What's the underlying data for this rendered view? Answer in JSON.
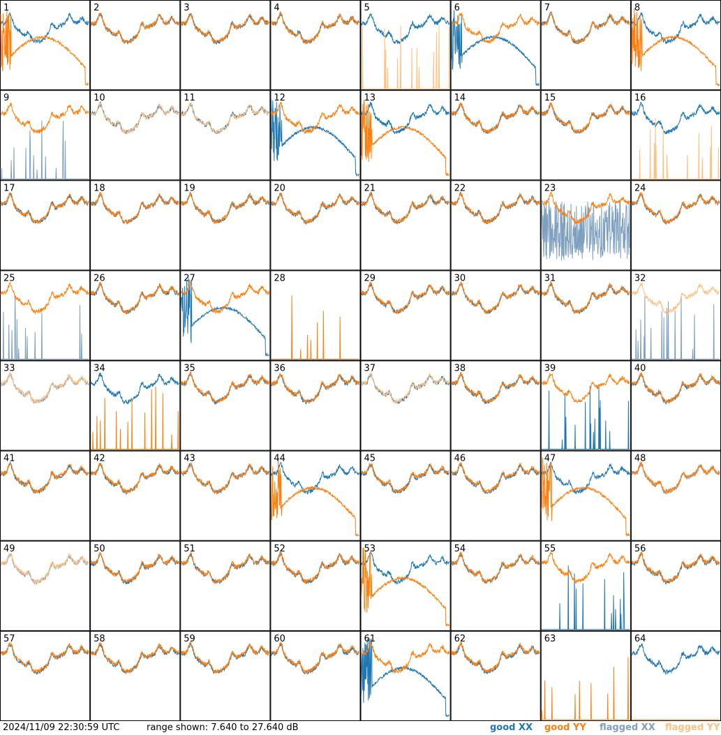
{
  "footer": {
    "timestamp": "2024/11/09 22:30:59 UTC",
    "range_text": "range shown: 7.640 to 27.640 dB"
  },
  "legend": {
    "good_xx": "good XX",
    "good_yy": "good YY",
    "flagged_xx": "flagged XX",
    "flagged_yy": "flagged YY"
  },
  "colors": {
    "good_xx": "#1f77b4",
    "good_yy": "#ff7f0e",
    "flagged_xx": "#7f9fbf",
    "flagged_yy": "#ffc080"
  },
  "chart_data": {
    "type": "line",
    "title": "",
    "xlabel": "",
    "ylabel": "",
    "ylim": [
      7.64,
      27.64
    ],
    "grid": "8x8 small multiples",
    "series_names": [
      "good XX",
      "good YY",
      "flagged XX",
      "flagged YY"
    ],
    "panels": [
      {
        "id": 1,
        "xx": "good",
        "yy": "good",
        "xx_shape": "normal",
        "yy_shape": "weird"
      },
      {
        "id": 2,
        "xx": "good",
        "yy": "good",
        "xx_shape": "normal",
        "yy_shape": "normal"
      },
      {
        "id": 3,
        "xx": "good",
        "yy": "good",
        "xx_shape": "normal",
        "yy_shape": "normal"
      },
      {
        "id": 4,
        "xx": "good",
        "yy": "good",
        "xx_shape": "normal",
        "yy_shape": "normal"
      },
      {
        "id": 5,
        "xx": "good",
        "yy": "flagged",
        "xx_shape": "normal",
        "yy_shape": "spikes"
      },
      {
        "id": 6,
        "xx": "good",
        "yy": "good",
        "xx_shape": "weird",
        "yy_shape": "normal"
      },
      {
        "id": 7,
        "xx": "good",
        "yy": "good",
        "xx_shape": "normal",
        "yy_shape": "normal"
      },
      {
        "id": 8,
        "xx": "good",
        "yy": "good",
        "xx_shape": "normal",
        "yy_shape": "weird"
      },
      {
        "id": 9,
        "xx": "flagged",
        "yy": "good",
        "xx_shape": "spikes",
        "yy_shape": "normal"
      },
      {
        "id": 10,
        "xx": "good",
        "yy": "flagged",
        "xx_shape": "normal",
        "yy_shape": "normal"
      },
      {
        "id": 11,
        "xx": "good",
        "yy": "flagged",
        "xx_shape": "normal",
        "yy_shape": "normal"
      },
      {
        "id": 12,
        "xx": "good",
        "yy": "good",
        "xx_shape": "weird",
        "yy_shape": "normal"
      },
      {
        "id": 13,
        "xx": "good",
        "yy": "good",
        "xx_shape": "normal",
        "yy_shape": "weird"
      },
      {
        "id": 14,
        "xx": "good",
        "yy": "good",
        "xx_shape": "normal",
        "yy_shape": "normal"
      },
      {
        "id": 15,
        "xx": "good",
        "yy": "good",
        "xx_shape": "normal",
        "yy_shape": "normal"
      },
      {
        "id": 16,
        "xx": "good",
        "yy": "flagged",
        "xx_shape": "normal",
        "yy_shape": "spikes"
      },
      {
        "id": 17,
        "xx": "good",
        "yy": "good",
        "xx_shape": "normal",
        "yy_shape": "normal"
      },
      {
        "id": 18,
        "xx": "good",
        "yy": "good",
        "xx_shape": "normal",
        "yy_shape": "normal"
      },
      {
        "id": 19,
        "xx": "good",
        "yy": "good",
        "xx_shape": "normal",
        "yy_shape": "normal"
      },
      {
        "id": 20,
        "xx": "good",
        "yy": "good",
        "xx_shape": "normal",
        "yy_shape": "normal"
      },
      {
        "id": 21,
        "xx": "good",
        "yy": "good",
        "xx_shape": "normal",
        "yy_shape": "normal"
      },
      {
        "id": 22,
        "xx": "good",
        "yy": "good",
        "xx_shape": "normal",
        "yy_shape": "normal"
      },
      {
        "id": 23,
        "xx": "flagged",
        "yy": "good",
        "xx_shape": "noisy",
        "yy_shape": "normal"
      },
      {
        "id": 24,
        "xx": "good",
        "yy": "good",
        "xx_shape": "normal",
        "yy_shape": "normal"
      },
      {
        "id": 25,
        "xx": "flagged",
        "yy": "good",
        "xx_shape": "spikes",
        "yy_shape": "normal"
      },
      {
        "id": 26,
        "xx": "good",
        "yy": "good",
        "xx_shape": "normal",
        "yy_shape": "normal"
      },
      {
        "id": 27,
        "xx": "good",
        "yy": "good",
        "xx_shape": "weird",
        "yy_shape": "normal"
      },
      {
        "id": 28,
        "xx": "good",
        "yy": "good",
        "xx_shape": "low",
        "yy_shape": "spikes"
      },
      {
        "id": 29,
        "xx": "good",
        "yy": "good",
        "xx_shape": "normal",
        "yy_shape": "normal"
      },
      {
        "id": 30,
        "xx": "good",
        "yy": "good",
        "xx_shape": "normal",
        "yy_shape": "normal"
      },
      {
        "id": 31,
        "xx": "good",
        "yy": "good",
        "xx_shape": "normal",
        "yy_shape": "normal"
      },
      {
        "id": 32,
        "xx": "flagged",
        "yy": "flagged",
        "xx_shape": "spikes",
        "yy_shape": "normal"
      },
      {
        "id": 33,
        "xx": "flagged",
        "yy": "flagged",
        "xx_shape": "normal",
        "yy_shape": "normal"
      },
      {
        "id": 34,
        "xx": "good",
        "yy": "good",
        "xx_shape": "normal",
        "yy_shape": "spikes"
      },
      {
        "id": 35,
        "xx": "good",
        "yy": "good",
        "xx_shape": "normal",
        "yy_shape": "normal"
      },
      {
        "id": 36,
        "xx": "good",
        "yy": "good",
        "xx_shape": "normal",
        "yy_shape": "normal"
      },
      {
        "id": 37,
        "xx": "good",
        "yy": "flagged",
        "xx_shape": "normal",
        "yy_shape": "normal"
      },
      {
        "id": 38,
        "xx": "good",
        "yy": "good",
        "xx_shape": "normal",
        "yy_shape": "normal"
      },
      {
        "id": 39,
        "xx": "good",
        "yy": "good",
        "xx_shape": "spikes",
        "yy_shape": "normal"
      },
      {
        "id": 40,
        "xx": "good",
        "yy": "good",
        "xx_shape": "normal",
        "yy_shape": "normal"
      },
      {
        "id": 41,
        "xx": "good",
        "yy": "good",
        "xx_shape": "normal",
        "yy_shape": "normal"
      },
      {
        "id": 42,
        "xx": "good",
        "yy": "good",
        "xx_shape": "normal",
        "yy_shape": "normal"
      },
      {
        "id": 43,
        "xx": "good",
        "yy": "good",
        "xx_shape": "normal",
        "yy_shape": "normal"
      },
      {
        "id": 44,
        "xx": "good",
        "yy": "good",
        "xx_shape": "normal",
        "yy_shape": "weird"
      },
      {
        "id": 45,
        "xx": "good",
        "yy": "good",
        "xx_shape": "normal",
        "yy_shape": "normal"
      },
      {
        "id": 46,
        "xx": "good",
        "yy": "good",
        "xx_shape": "normal",
        "yy_shape": "normal"
      },
      {
        "id": 47,
        "xx": "good",
        "yy": "good",
        "xx_shape": "normal",
        "yy_shape": "weird"
      },
      {
        "id": 48,
        "xx": "flagged",
        "yy": "good",
        "xx_shape": "normal",
        "yy_shape": "normal"
      },
      {
        "id": 49,
        "xx": "flagged",
        "yy": "flagged",
        "xx_shape": "normal",
        "yy_shape": "normal"
      },
      {
        "id": 50,
        "xx": "good",
        "yy": "good",
        "xx_shape": "normal",
        "yy_shape": "normal"
      },
      {
        "id": 51,
        "xx": "good",
        "yy": "good",
        "xx_shape": "normal",
        "yy_shape": "normal"
      },
      {
        "id": 52,
        "xx": "good",
        "yy": "good",
        "xx_shape": "normal",
        "yy_shape": "normal"
      },
      {
        "id": 53,
        "xx": "good",
        "yy": "good",
        "xx_shape": "normal",
        "yy_shape": "weird"
      },
      {
        "id": 54,
        "xx": "good",
        "yy": "good",
        "xx_shape": "normal",
        "yy_shape": "normal"
      },
      {
        "id": 55,
        "xx": "good",
        "yy": "good",
        "xx_shape": "spikes",
        "yy_shape": "normal"
      },
      {
        "id": 56,
        "xx": "good",
        "yy": "good",
        "xx_shape": "normal",
        "yy_shape": "normal"
      },
      {
        "id": 57,
        "xx": "good",
        "yy": "good",
        "xx_shape": "normal",
        "yy_shape": "normal"
      },
      {
        "id": 58,
        "xx": "good",
        "yy": "good",
        "xx_shape": "normal",
        "yy_shape": "normal"
      },
      {
        "id": 59,
        "xx": "good",
        "yy": "good",
        "xx_shape": "normal",
        "yy_shape": "normal"
      },
      {
        "id": 60,
        "xx": "good",
        "yy": "good",
        "xx_shape": "normal",
        "yy_shape": "normal"
      },
      {
        "id": 61,
        "xx": "good",
        "yy": "good",
        "xx_shape": "weird",
        "yy_shape": "normal"
      },
      {
        "id": 62,
        "xx": "good",
        "yy": "good",
        "xx_shape": "normal",
        "yy_shape": "normal"
      },
      {
        "id": 63,
        "xx": "good",
        "yy": "good",
        "xx_shape": "low",
        "yy_shape": "spikes"
      },
      {
        "id": 64,
        "xx": "good",
        "yy": "good",
        "xx_shape": "normal",
        "yy_shape": "low"
      }
    ]
  }
}
